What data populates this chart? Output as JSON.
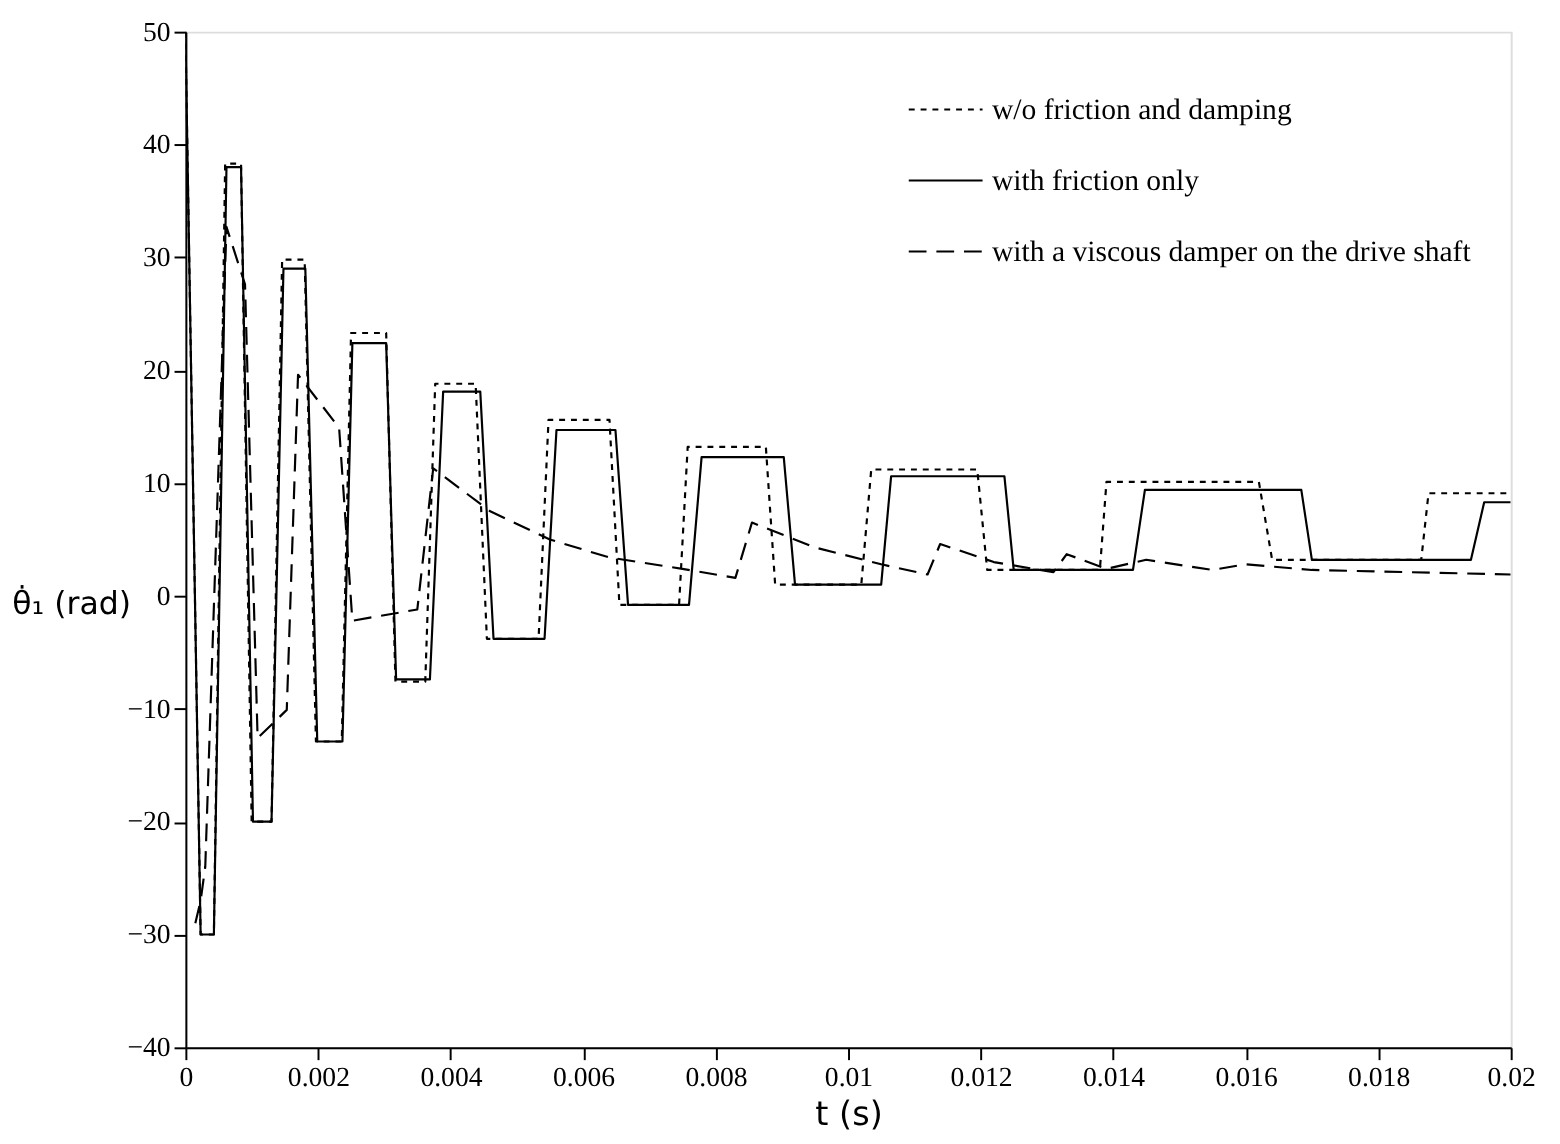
{
  "chart_data": {
    "type": "line",
    "xlabel": "t (s)",
    "ylabel": "θ̇₁ (rad)",
    "xlim": [
      0,
      0.02
    ],
    "xticks": [
      0,
      0.002,
      0.004,
      0.006,
      0.008,
      0.01,
      0.012,
      0.014,
      0.016,
      0.018,
      0.02
    ],
    "ylim": [
      -40,
      50
    ],
    "yticks": [
      -40,
      -30,
      -20,
      -10,
      0,
      10,
      20,
      30,
      40,
      50
    ],
    "grid": false,
    "legend": "top right",
    "marker": "none",
    "series": [
      {
        "name": "w/o friction and damping",
        "color": "#000000",
        "line_style": "dotted",
        "x": [
          0,
          0.00023,
          0.00043,
          0.0006,
          0.00084,
          0.001,
          0.0013,
          0.00146,
          0.0018,
          0.00197,
          0.00236,
          0.0025,
          0.00303,
          0.00317,
          0.00362,
          0.00377,
          0.00438,
          0.00455,
          0.00533,
          0.00548,
          0.0064,
          0.00655,
          0.00745,
          0.00758,
          0.00876,
          0.0089,
          0.0102,
          0.01035,
          0.01195,
          0.0121,
          0.0138,
          0.0139,
          0.0162,
          0.0164,
          0.01865,
          0.01876,
          0.02
        ],
        "values": [
          50,
          -30,
          -30,
          38.3,
          38.3,
          -20,
          -20,
          29.8,
          29.8,
          -12.9,
          -12.9,
          23.3,
          23.3,
          -7.6,
          -7.6,
          18.8,
          18.8,
          -3.8,
          -3.8,
          15.6,
          15.6,
          -0.8,
          -0.8,
          13.2,
          13.2,
          1,
          1,
          11.2,
          11.2,
          2.3,
          2.3,
          10.1,
          10.1,
          3.2,
          3.2,
          9.1,
          9.1
        ]
      },
      {
        "name": "with friction only",
        "color": "#000000",
        "line_style": "solid",
        "x": [
          0,
          0.00023,
          0.00043,
          0.00062,
          0.00084,
          0.00102,
          0.0013,
          0.00148,
          0.00181,
          0.00199,
          0.00237,
          0.00252,
          0.00303,
          0.00318,
          0.00369,
          0.00389,
          0.00445,
          0.00465,
          0.00542,
          0.0056,
          0.00649,
          0.00668,
          0.0076,
          0.00779,
          0.00903,
          0.0092,
          0.0105,
          0.01065,
          0.01236,
          0.0125,
          0.0143,
          0.01448,
          0.01684,
          0.017,
          0.0194,
          0.0196,
          0.02
        ],
        "values": [
          50,
          -30,
          -30,
          38,
          38,
          -20,
          -20,
          29,
          29,
          -12.9,
          -12.9,
          22.4,
          22.4,
          -7.4,
          -7.4,
          18.1,
          18.1,
          -3.8,
          -3.8,
          14.7,
          14.7,
          -0.8,
          -0.8,
          12.3,
          12.3,
          1,
          1,
          10.6,
          10.6,
          2.3,
          2.3,
          9.4,
          9.4,
          3.2,
          3.2,
          8.3,
          8.3
        ]
      },
      {
        "name": "with a viscous damper on the drive shaft",
        "color": "#000000",
        "line_style": "dashed",
        "x": [
          0.00015,
          0.00023,
          0.0003,
          0.00062,
          0.0009,
          0.00109,
          0.00153,
          0.0017,
          0.00232,
          0.00252,
          0.0035,
          0.00374,
          0.0046,
          0.0055,
          0.0064,
          0.0075,
          0.0083,
          0.00855,
          0.0095,
          0.0105,
          0.0112,
          0.01139,
          0.0122,
          0.0131,
          0.0133,
          0.0139,
          0.0145,
          0.0155,
          0.016,
          0.017,
          0.02
        ],
        "values": [
          -29,
          -27,
          -24,
          32.7,
          27.6,
          -12.6,
          -10.1,
          19.6,
          14.9,
          -2.2,
          -1.2,
          11.3,
          7.5,
          5,
          3.4,
          2.4,
          1.6,
          6.5,
          4.3,
          2.8,
          1.9,
          4.6,
          3,
          2.1,
          3.7,
          2.4,
          3.2,
          2.3,
          2.8,
          2.3,
          1.9
        ]
      }
    ]
  }
}
